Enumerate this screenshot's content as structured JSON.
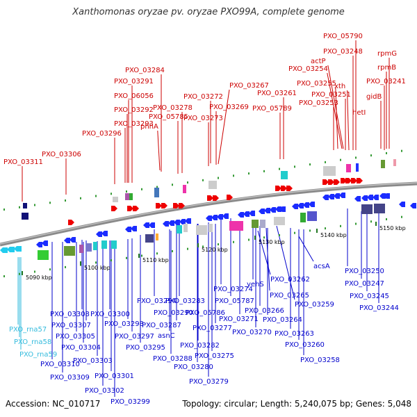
{
  "title": "Xanthomonas oryzae pv. oryzae PXO99A, complete genome",
  "accession": "Accession: NC_010717",
  "summary": "Topology: circular; Length: 5,240,075 bp; Genes: 5,048",
  "colors": {
    "top_labels": "#cc0000",
    "bottom_labels": "#0000cc",
    "rna_labels": "#33bbdd",
    "backbone": "#888888"
  },
  "kbp_ticks": [
    "5090 kbp",
    "5100 kbp",
    "5110 kbp",
    "5120 kbp",
    "5130 kbp",
    "5140 kbp",
    "5150 kbp"
  ],
  "top_labels": [
    "PXO_05790",
    "PXO_03248",
    "rpmG",
    "actP",
    "PXO_03254",
    "rpmB",
    "PXO_03284",
    "PXO_03255",
    "xth",
    "PXO_03241",
    "PXO_03291",
    "PXO_03267",
    "PXO_03261",
    "PXO_03251",
    "PXO_06056",
    "PXO_03272",
    "PXO_03253",
    "gidB",
    "PXO_03278",
    "PXO_03269",
    "PXO_05789",
    "PXO_03292",
    "hetI",
    "PXO_05785",
    "PXO_03273",
    "PXO_03293",
    "phhA",
    "PXO_03296",
    "PXO_03306",
    "PXO_03311"
  ],
  "bottom_labels": [
    "acsA",
    "PXO_03262",
    "PXO_03250",
    "PXO_03274",
    "yehS",
    "PXO_03247",
    "PXO_03265",
    "PXO_03259",
    "PXO_03294",
    "PXO_03283",
    "PXO_05787",
    "PXO_03266",
    "PXO_03245",
    "PXO_03290",
    "PXO_03244",
    "PXO_03308",
    "PXO_03300",
    "PXO_05786",
    "PXO_03271",
    "PXO_03264",
    "PXO_03307",
    "PXO_03298",
    "PXO_03287",
    "PXO_03277",
    "PXO_03270",
    "PXO_03263",
    "PXO_03305",
    "PXO_03297",
    "asnC",
    "PXO_03304",
    "PXO_03295",
    "PXO_03282",
    "PXO_03260",
    "PXO_03303",
    "PXO_03288",
    "PXO_03275",
    "PXO_03258",
    "PXO_03310",
    "PXO_03280",
    "PXO_03309",
    "PXO_03301",
    "PXO_03279",
    "PXO_03302",
    "PXO_03299"
  ],
  "rna_labels": [
    "PXO_rna57",
    "PXO_rna58",
    "PXO_rna59"
  ]
}
